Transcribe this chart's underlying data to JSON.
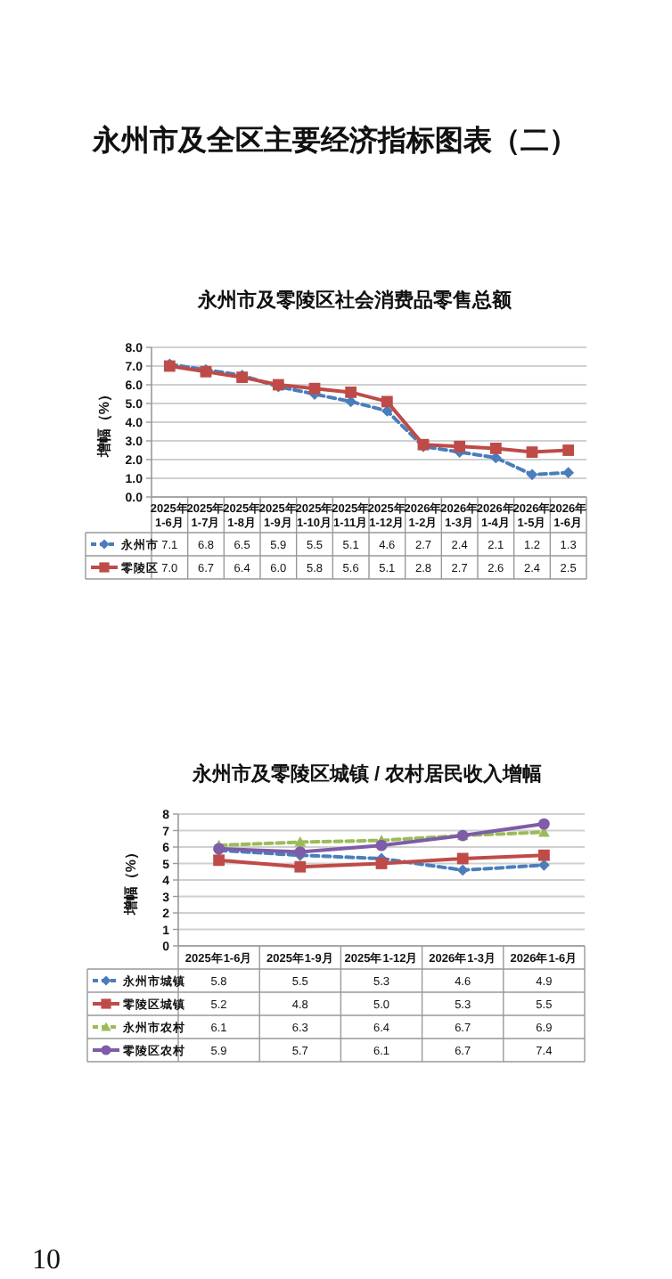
{
  "chart_data": [
    {
      "type": "line",
      "title": "永州市及零陵区社会消费品零售总额",
      "ylabel": "增幅（%）",
      "annotations": [
        "永州市及全区主要经济指标图表（二）"
      ],
      "categories": [
        "2025年\n1-6月",
        "2025年\n1-7月",
        "2025年\n1-8月",
        "2025年\n1-9月",
        "2025年\n1-10月",
        "2025年\n1-11月",
        "2025年\n1-12月",
        "2026年\n1-2月",
        "2026年\n1-3月",
        "2026年\n1-4月",
        "2026年\n1-5月",
        "2026年\n1-6月"
      ],
      "ylim": [
        0,
        8
      ],
      "yticks": [
        {
          "value": 0,
          "label": "0.0"
        },
        {
          "value": 1,
          "label": "1.0"
        },
        {
          "value": 2,
          "label": "2.0"
        },
        {
          "value": 3,
          "label": "3.0"
        },
        {
          "value": 4,
          "label": "4.0"
        },
        {
          "value": 5,
          "label": "5.0"
        },
        {
          "value": 6,
          "label": "6.0"
        },
        {
          "value": 7,
          "label": "7.0"
        },
        {
          "value": 8,
          "label": "8.0"
        }
      ],
      "grid": "y",
      "legend": "bottom",
      "series": [
        {
          "name": "永州市",
          "color": "#4a7ebb",
          "marker": "diamond",
          "line_style": "dashed",
          "values": [
            7.1,
            6.8,
            6.5,
            5.9,
            5.5,
            5.1,
            4.6,
            2.7,
            2.4,
            2.1,
            1.2,
            1.3
          ],
          "value_labels": [
            "7.1",
            "6.8",
            "6.5",
            "5.9",
            "5.5",
            "5.1",
            "4.6",
            "2.7",
            "2.4",
            "2.1",
            "1.2",
            "1.3"
          ]
        },
        {
          "name": "零陵区",
          "color": "#be4b48",
          "marker": "square",
          "line_style": "solid",
          "values": [
            7.0,
            6.7,
            6.4,
            6.0,
            5.8,
            5.6,
            5.1,
            2.8,
            2.7,
            2.6,
            2.4,
            2.5
          ],
          "value_labels": [
            "7.0",
            "6.7",
            "6.4",
            "6.0",
            "5.8",
            "5.6",
            "5.1",
            "2.8",
            "2.7",
            "2.6",
            "2.4",
            "2.5"
          ]
        }
      ]
    },
    {
      "type": "line",
      "title": "永州市及零陵区城镇 / 农村居民收入增幅",
      "ylabel": "增幅（%）",
      "annotations": [
        "10"
      ],
      "categories": [
        "2025年1-6月",
        "2025年1-9月",
        "2025年1-12月",
        "2026年1-3月",
        "2026年1-6月"
      ],
      "ylim": [
        0,
        8
      ],
      "yticks": [
        0,
        1,
        2,
        3,
        4,
        5,
        6,
        7,
        8
      ],
      "grid": "y",
      "legend": "bottom",
      "series": [
        {
          "name": "永州市城镇",
          "color": "#4a7ebb",
          "marker": "diamond",
          "line_style": "dashed",
          "values": [
            5.8,
            5.5,
            5.3,
            4.6,
            4.9
          ],
          "value_labels": [
            "5.8",
            "5.5",
            "5.3",
            "4.6",
            "4.9"
          ]
        },
        {
          "name": "零陵区城镇",
          "color": "#be4b48",
          "marker": "square",
          "line_style": "solid",
          "values": [
            5.2,
            4.8,
            5.0,
            5.3,
            5.5
          ],
          "value_labels": [
            "5.2",
            "4.8",
            "5.0",
            "5.3",
            "5.5"
          ]
        },
        {
          "name": "永州市农村",
          "color": "#9bbb59",
          "marker": "triangle",
          "line_style": "dashed",
          "values": [
            6.1,
            6.3,
            6.4,
            6.7,
            6.9
          ],
          "value_labels": [
            "6.1",
            "6.3",
            "6.4",
            "6.7",
            "6.9"
          ]
        },
        {
          "name": "零陵区农村",
          "color": "#7e5ca7",
          "marker": "circle",
          "line_style": "solid",
          "values": [
            5.9,
            5.7,
            6.1,
            6.7,
            7.4
          ],
          "value_labels": [
            "5.9",
            "5.7",
            "6.1",
            "6.7",
            "7.4"
          ]
        }
      ]
    }
  ]
}
